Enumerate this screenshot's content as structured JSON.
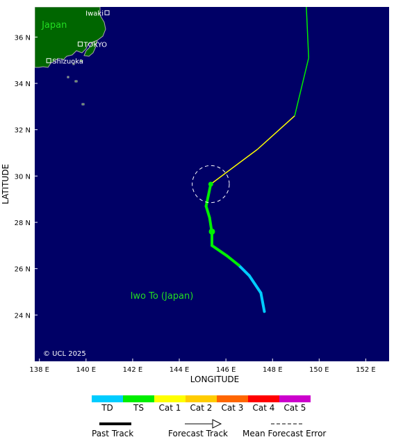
{
  "map": {
    "lon_range": [
      137.8,
      153.0
    ],
    "lat_range": [
      22.0,
      37.3
    ],
    "x_ticks": [
      {
        "value": 138,
        "label": "138 E"
      },
      {
        "value": 140,
        "label": "140 E"
      },
      {
        "value": 142,
        "label": "142 E"
      },
      {
        "value": 144,
        "label": "144 E"
      },
      {
        "value": 146,
        "label": "146 E"
      },
      {
        "value": 148,
        "label": "148 E"
      },
      {
        "value": 150,
        "label": "150 E"
      },
      {
        "value": 152,
        "label": "152 E"
      }
    ],
    "y_ticks": [
      {
        "value": 24,
        "label": "24 N"
      },
      {
        "value": 26,
        "label": "26 N"
      },
      {
        "value": 28,
        "label": "28 N"
      },
      {
        "value": 30,
        "label": "30 N"
      },
      {
        "value": 32,
        "label": "32 N"
      },
      {
        "value": 34,
        "label": "34 N"
      },
      {
        "value": 36,
        "label": "36 N"
      }
    ],
    "xlabel": "LONGITUDE",
    "ylabel": "LATITUDE",
    "copyright": "© UCL 2025",
    "colors": {
      "ocean": "#000066",
      "land": "#006600",
      "coast": "#aaaaaa"
    },
    "region_labels": [
      {
        "name": "japan-label",
        "text": "Japan",
        "lon": 138.1,
        "lat": 36.4
      },
      {
        "name": "iwo-to-label",
        "text": "Iwo To (Japan)",
        "lon": 141.9,
        "lat": 24.7
      }
    ],
    "cities": [
      {
        "name": "Iwaki",
        "lon": 140.9,
        "lat": 37.05,
        "label_side": "left"
      },
      {
        "name": "TOKYO",
        "lon": 139.75,
        "lat": 35.7,
        "label_side": "right"
      },
      {
        "name": "Shizuoka",
        "lon": 138.4,
        "lat": 34.98,
        "label_side": "right"
      }
    ],
    "track": {
      "past": [
        {
          "lon": 147.65,
          "lat": 24.15,
          "cat": "TD"
        },
        {
          "lon": 147.5,
          "lat": 24.95,
          "cat": "TD"
        },
        {
          "lon": 147.0,
          "lat": 25.7,
          "cat": "TD"
        },
        {
          "lon": 146.55,
          "lat": 26.15,
          "cat": "TS"
        },
        {
          "lon": 146.05,
          "lat": 26.55,
          "cat": "TS"
        },
        {
          "lon": 145.4,
          "lat": 27.0,
          "cat": "TS"
        },
        {
          "lon": 145.4,
          "lat": 27.55,
          "cat": "TS"
        },
        {
          "lon": 145.3,
          "lat": 28.2,
          "cat": "TS"
        },
        {
          "lon": 145.15,
          "lat": 28.7,
          "cat": "TS"
        },
        {
          "lon": 145.35,
          "lat": 29.65,
          "cat": "TS"
        }
      ],
      "forecast": [
        {
          "lon": 145.35,
          "lat": 29.65,
          "cat": "TS"
        },
        {
          "lon": 147.35,
          "lat": 31.15,
          "cat": "Cat 1"
        },
        {
          "lon": 148.95,
          "lat": 32.6,
          "cat": "Cat 1"
        },
        {
          "lon": 149.55,
          "lat": 35.1,
          "cat": "TS"
        },
        {
          "lon": 149.45,
          "lat": 37.3,
          "cat": "TS"
        }
      ],
      "positions": [
        {
          "lon": 145.4,
          "lat": 27.6,
          "kind": "past-fix"
        },
        {
          "lon": 145.35,
          "lat": 29.65,
          "kind": "current-position"
        }
      ],
      "error_circle": {
        "lon": 145.35,
        "lat": 29.65,
        "radius_deg": 0.8
      }
    }
  },
  "legend": {
    "categories": [
      {
        "label": "TD",
        "color": "#00ccff"
      },
      {
        "label": "TS",
        "color": "#00ee00"
      },
      {
        "label": "Cat 1",
        "color": "#ffff00"
      },
      {
        "label": "Cat 2",
        "color": "#ffcc00"
      },
      {
        "label": "Cat 3",
        "color": "#ff6600"
      },
      {
        "label": "Cat 4",
        "color": "#ff0000"
      },
      {
        "label": "Cat 5",
        "color": "#cc00cc"
      }
    ],
    "past_track_label": "Past Track",
    "forecast_track_label": "Forecast Track",
    "error_label": "Mean Forecast Error"
  }
}
